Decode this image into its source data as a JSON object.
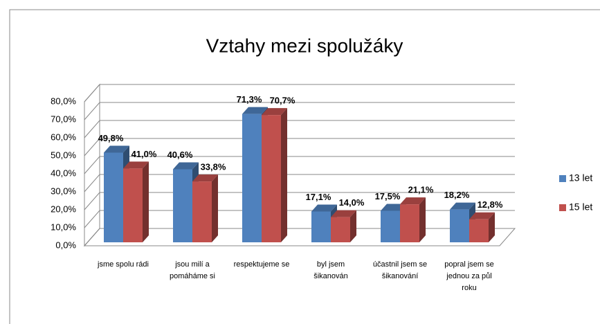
{
  "chart_data": {
    "type": "bar3d",
    "title": "Vztahy mezi spolužáky",
    "categories": [
      "jsme spolu rádi",
      "jsou milí a pomáháme si",
      "respektujeme se",
      "byl jsem šikanován",
      "účastnil jsem se šikanování",
      "popral jsem se jednou za půl roku"
    ],
    "series": [
      {
        "name": "13 let",
        "color": "#4f81bd",
        "values": [
          49.8,
          40.6,
          71.3,
          17.1,
          17.5,
          18.2
        ],
        "value_labels": [
          "49,8%",
          "40,6%",
          "71,3%",
          "17,1%",
          "17,5%",
          "18,2%"
        ]
      },
      {
        "name": "15 let",
        "color": "#c0504d",
        "values": [
          41.0,
          33.8,
          70.7,
          14.0,
          21.1,
          12.8
        ],
        "value_labels": [
          "41,0%",
          "33,8%",
          "70,7%",
          "14,0%",
          "21,1%",
          "12,8%"
        ]
      }
    ],
    "ylim": [
      0,
      80
    ],
    "yticks": [
      {
        "value": 0,
        "label": "0,0%"
      },
      {
        "value": 10,
        "label": "10,0%"
      },
      {
        "value": 20,
        "label": "20,0%"
      },
      {
        "value": 30,
        "label": "30,0%"
      },
      {
        "value": 40,
        "label": "40,0%"
      },
      {
        "value": 50,
        "label": "50,0%"
      },
      {
        "value": 60,
        "label": "60,0%"
      },
      {
        "value": 70,
        "label": "70,0%"
      },
      {
        "value": 80,
        "label": "80,0%"
      }
    ],
    "grid": true,
    "legend": "right"
  }
}
